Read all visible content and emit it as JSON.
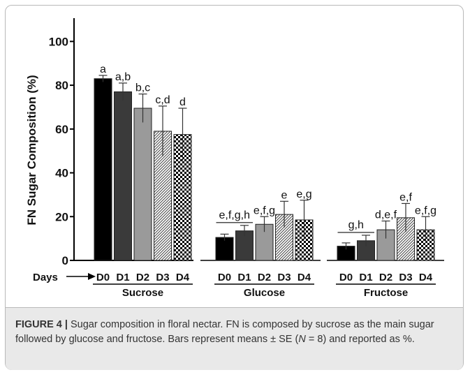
{
  "figure": {
    "caption_label": "FIGURE 4 |",
    "caption_line1": " Sugar composition in floral nectar. FN is composed by sucrose as the main sugar followed by glucose and fructose. Bars represent means ± SE (",
    "caption_n_var": "N",
    "caption_line2": " = 8) and reported as %."
  },
  "chart_data": {
    "type": "bar",
    "ylabel": "FN Sugar Composition (%)",
    "xlabel": "Days",
    "ylim": [
      0,
      110
    ],
    "yticks": [
      "0",
      "20",
      "40",
      "60",
      "80",
      "100"
    ],
    "grid": false,
    "legend": "none",
    "categories": [
      "D0",
      "D1",
      "D2",
      "D3",
      "D4"
    ],
    "bar_styles": [
      "solid-black",
      "solid-darkgray",
      "solid-gray",
      "diagonal-hatch",
      "checkerboard"
    ],
    "colors": {
      "D0": "#000000",
      "D1": "#3a3a3a",
      "D2": "#9a9a9a"
    },
    "groups": [
      {
        "name": "Sucrose",
        "values": [
          83,
          77,
          69.5,
          59,
          57.5
        ],
        "errors": [
          1.5,
          4,
          6.5,
          11.5,
          12
        ],
        "letters": [
          "a",
          "a,b",
          "b,c",
          "c,d",
          "d"
        ],
        "shared_letters": []
      },
      {
        "name": "Glucose",
        "values": [
          10.5,
          13.5,
          16.5,
          21,
          18.5
        ],
        "errors": [
          1.5,
          2.5,
          3.5,
          6,
          9
        ],
        "letters": [
          "",
          "",
          "e,f,g",
          "e",
          "e,g"
        ],
        "shared_letters": [
          "e,f,g,h"
        ]
      },
      {
        "name": "Fructose",
        "values": [
          6.5,
          9,
          14,
          19.5,
          14
        ],
        "errors": [
          1.5,
          2.5,
          4,
          6.5,
          6
        ],
        "letters": [
          "",
          "",
          "d,e,f",
          "e,f",
          "e,f,g"
        ],
        "shared_letters": [
          "g,h"
        ]
      }
    ]
  }
}
